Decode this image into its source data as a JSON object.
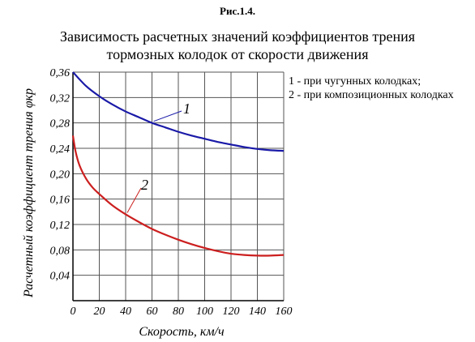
{
  "figure_label": "Рис.1.4.",
  "title_lines": [
    "Зависимость расчетных значений коэффициентов трения",
    "тормозных колодок от скорости движения"
  ],
  "legend": [
    "1 - при чугунных колодках;",
    "2 - при композиционных колодках"
  ],
  "colors": {
    "series_1": "#1a1aa8",
    "series_2": "#cc1f1f",
    "axis": "#000000"
  },
  "chart_data": {
    "type": "line",
    "xlabel": "Скорость, км/ч",
    "ylabel": "Расчетный коэффициент трения φкр",
    "xlim": [
      0,
      160
    ],
    "ylim": [
      0,
      0.36
    ],
    "x_ticks": [
      "0",
      "20",
      "40",
      "60",
      "80",
      "100",
      "120",
      "140",
      "160"
    ],
    "y_ticks": [
      "0,04",
      "0,08",
      "0,12",
      "0,16",
      "0,20",
      "0,24",
      "0,28",
      "0,32",
      "0,36"
    ],
    "grid": true,
    "series": [
      {
        "name": "1",
        "x": [
          0,
          10,
          20,
          30,
          40,
          50,
          60,
          70,
          80,
          90,
          100,
          110,
          120,
          130,
          140,
          150,
          160
        ],
        "values": [
          0.36,
          0.338,
          0.322,
          0.309,
          0.298,
          0.289,
          0.28,
          0.273,
          0.266,
          0.26,
          0.255,
          0.25,
          0.246,
          0.242,
          0.239,
          0.237,
          0.236
        ]
      },
      {
        "name": "2",
        "x": [
          0,
          2,
          5,
          10,
          15,
          20,
          30,
          40,
          50,
          60,
          70,
          80,
          90,
          100,
          110,
          120,
          130,
          140,
          150,
          160
        ],
        "values": [
          0.26,
          0.235,
          0.213,
          0.192,
          0.178,
          0.168,
          0.15,
          0.136,
          0.124,
          0.113,
          0.104,
          0.096,
          0.089,
          0.083,
          0.078,
          0.074,
          0.072,
          0.071,
          0.071,
          0.072
        ]
      }
    ]
  }
}
